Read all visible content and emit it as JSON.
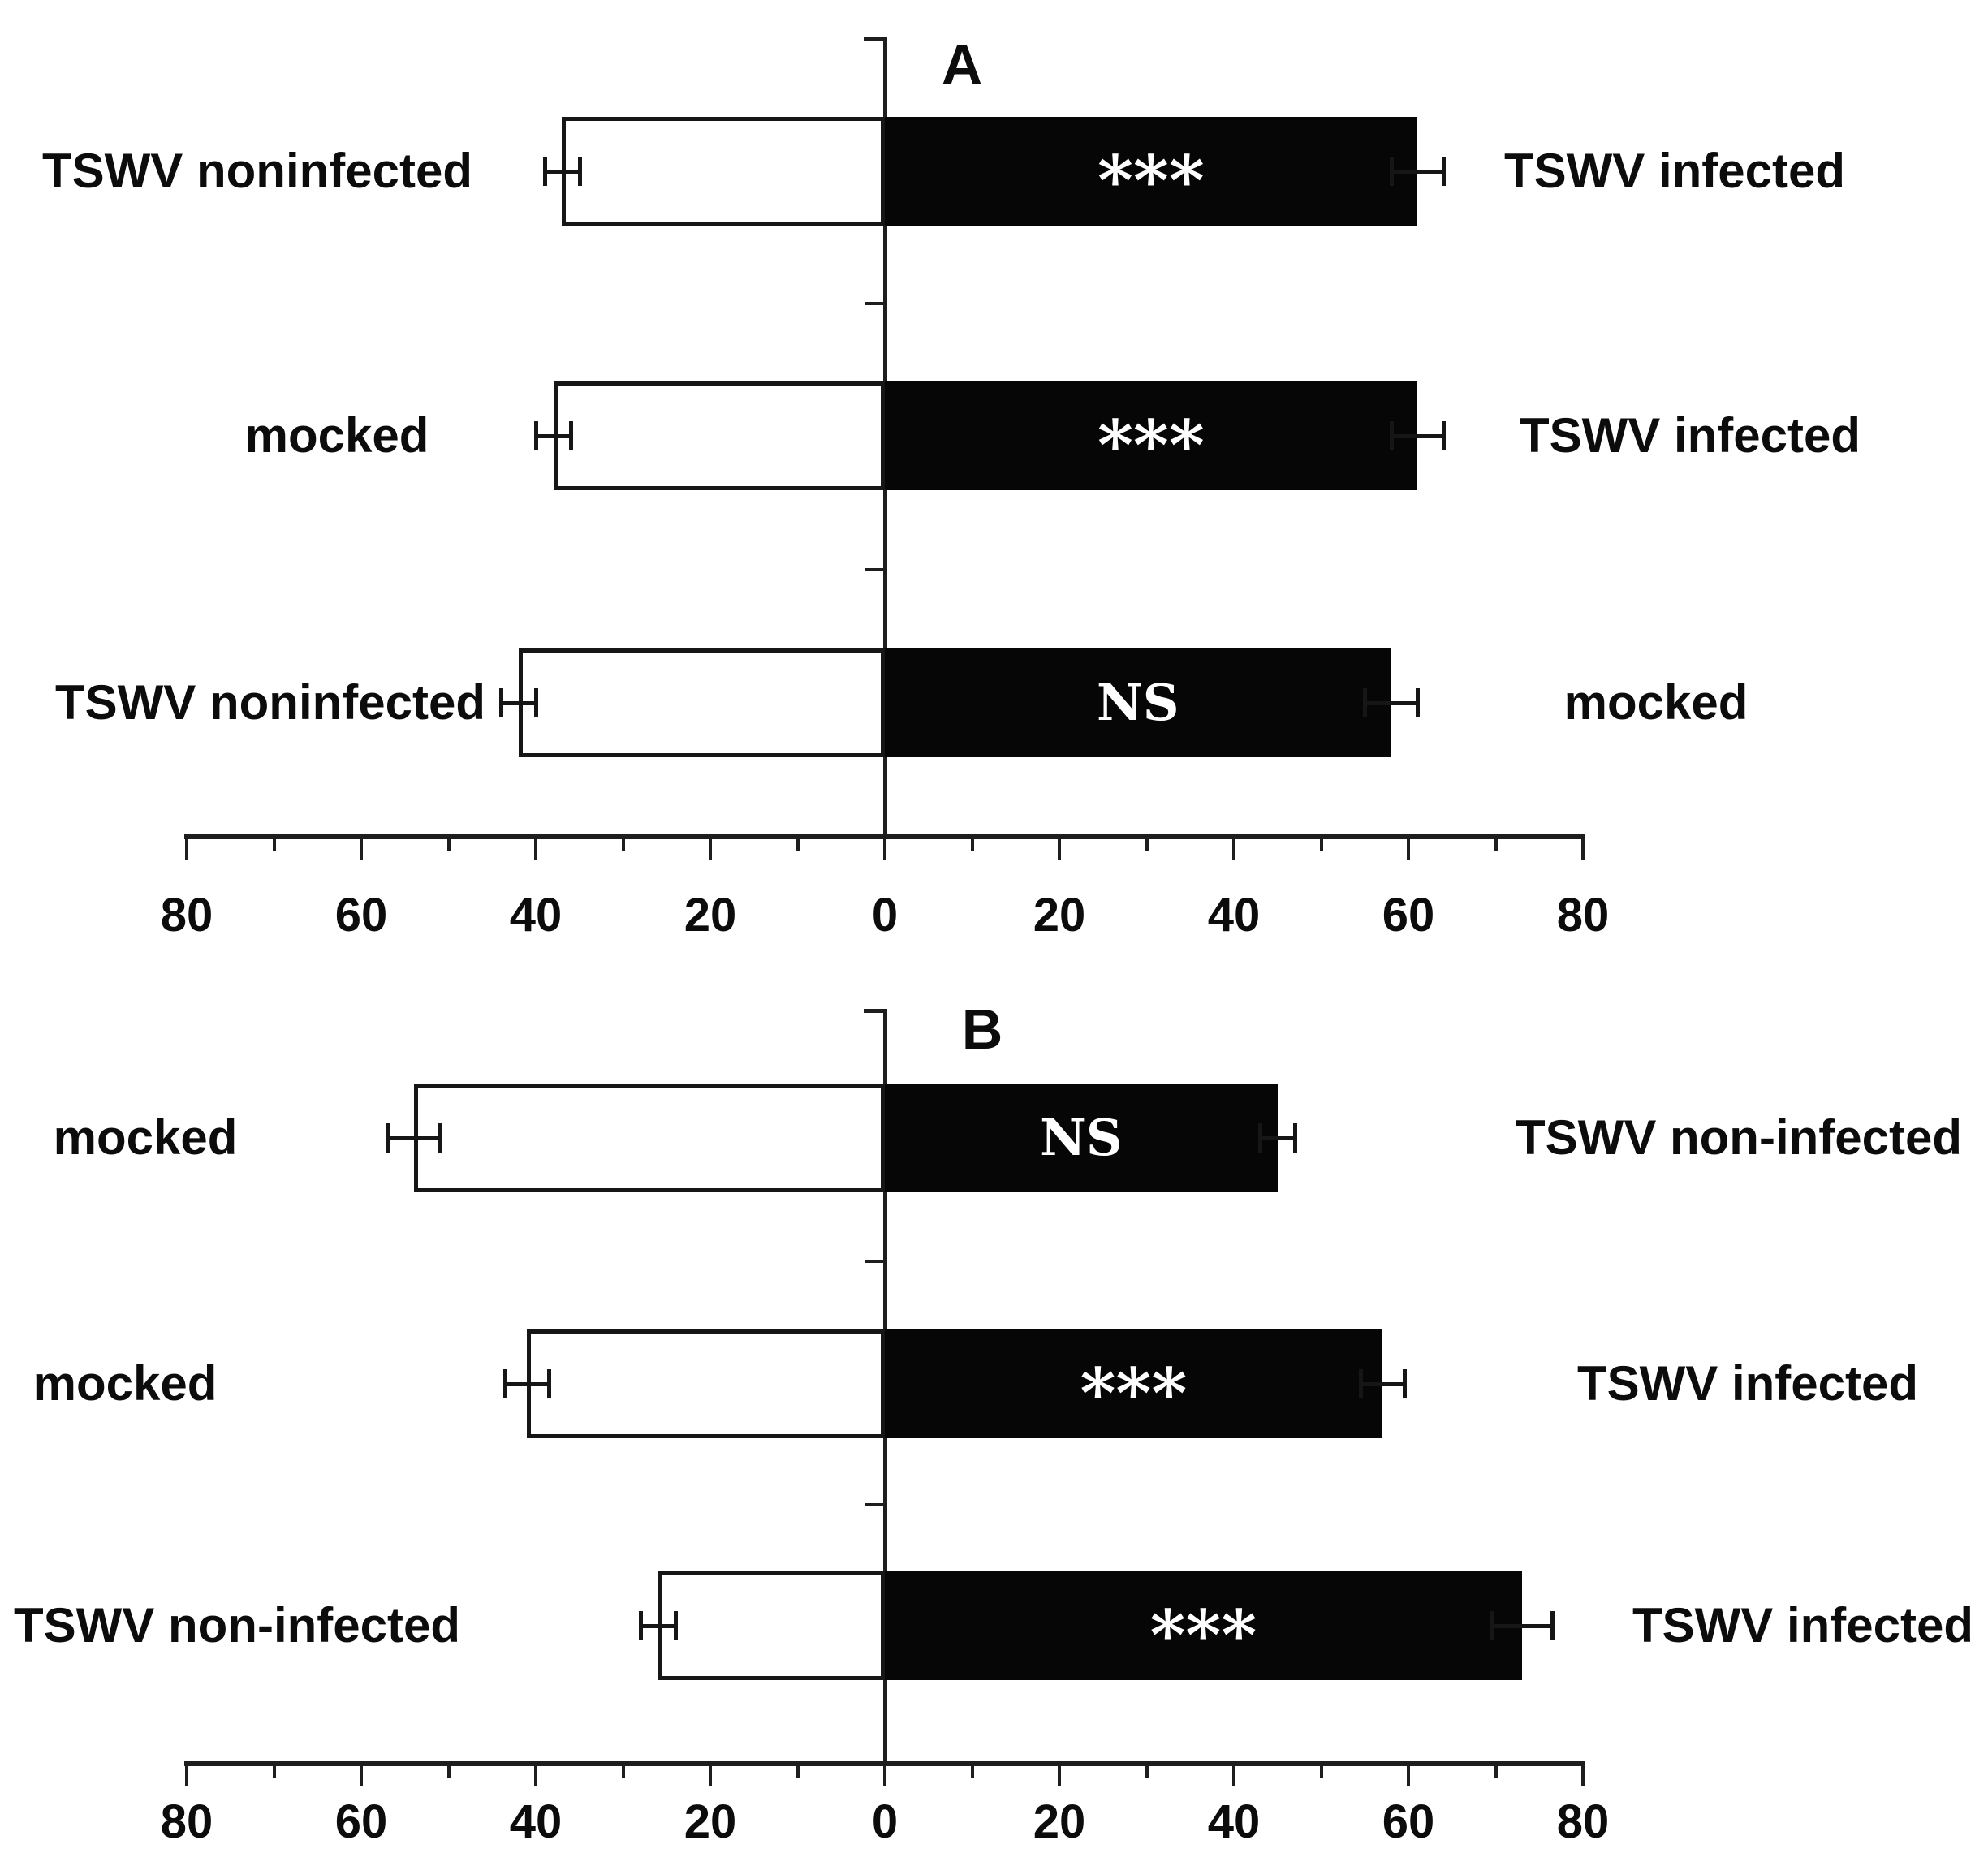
{
  "figure_title": "Two-panel diverging horizontal bar chart (thrips choice test, TSWV treatments)",
  "colors": {
    "background": "#ffffff",
    "bar_black": "#060606",
    "bar_white": "#ffffff",
    "line": "#1e1e1e",
    "text": "#0c0c0c",
    "significance_text": "#ffffff"
  },
  "chart_data": [
    {
      "type": "bar",
      "orientation": "horizontal-diverging",
      "title": "A",
      "axis": {
        "range_units": 80,
        "major_step": 20,
        "minor_step": 10,
        "tick_labels": [
          "80",
          "60",
          "40",
          "20",
          "0",
          "20",
          "40",
          "60",
          "80"
        ]
      },
      "rows": [
        {
          "left": {
            "label": "TSWV noninfected",
            "value": 37,
            "error": 2,
            "fill": "white"
          },
          "right": {
            "label": "TSWV infected",
            "value": 61,
            "error": 3,
            "fill": "black"
          },
          "significance": "***"
        },
        {
          "left": {
            "label": "mocked",
            "value": 38,
            "error": 2,
            "fill": "white"
          },
          "right": {
            "label": "TSWV infected",
            "value": 61,
            "error": 3,
            "fill": "black"
          },
          "significance": "***"
        },
        {
          "left": {
            "label": "TSWV noninfected",
            "value": 42,
            "error": 2,
            "fill": "white"
          },
          "right": {
            "label": "mocked",
            "value": 58,
            "error": 3,
            "fill": "black"
          },
          "significance": "NS"
        }
      ]
    },
    {
      "type": "bar",
      "orientation": "horizontal-diverging",
      "title": "B",
      "axis": {
        "range_units": 80,
        "major_step": 20,
        "minor_step": 10,
        "tick_labels": [
          "80",
          "60",
          "40",
          "20",
          "0",
          "20",
          "40",
          "60",
          "80"
        ]
      },
      "rows": [
        {
          "left": {
            "label": "mocked",
            "value": 54,
            "error": 3,
            "fill": "white"
          },
          "right": {
            "label": "TSWV non-infected",
            "value": 45,
            "error": 2,
            "fill": "black"
          },
          "significance": "NS"
        },
        {
          "left": {
            "label": "mocked",
            "value": 41,
            "error": 2.5,
            "fill": "white"
          },
          "right": {
            "label": "TSWV infected",
            "value": 57,
            "error": 2.5,
            "fill": "black"
          },
          "significance": "***"
        },
        {
          "left": {
            "label": "TSWV non-infected",
            "value": 26,
            "error": 2,
            "fill": "white"
          },
          "right": {
            "label": "TSWV infected",
            "value": 73,
            "error": 3.5,
            "fill": "black"
          },
          "significance": "***"
        }
      ]
    }
  ]
}
